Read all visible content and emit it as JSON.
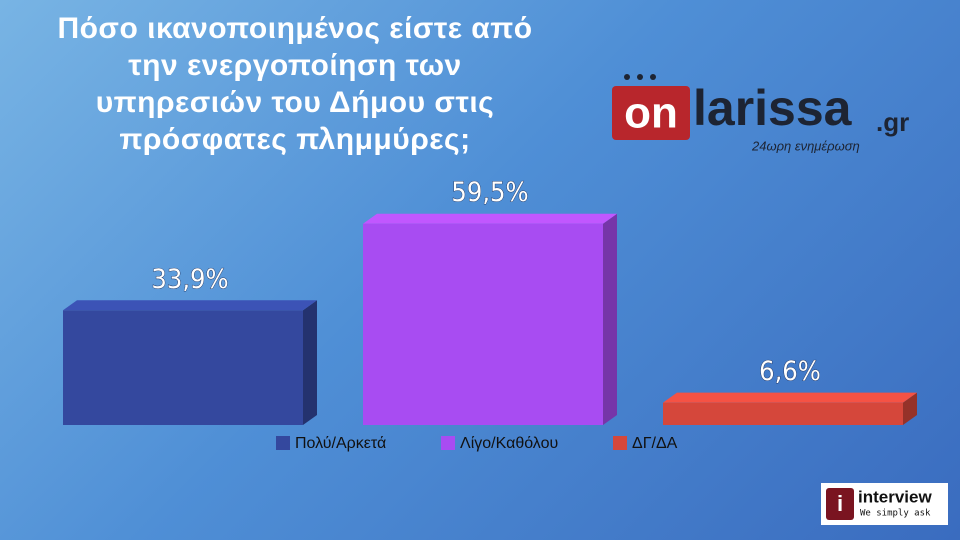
{
  "chart_data": {
    "type": "bar3d",
    "title": "Πόσο ικανοποιημένος είστε από\nτην ενεργοποίηση των\nυπηρεσιών του Δήμου στις\nπρόσφατες πλημμύρες;",
    "categories": [
      "Πολύ/Αρκετά",
      "Λίγο/Καθόλου",
      "ΔΓ/ΔΑ"
    ],
    "values": [
      33.9,
      59.5,
      6.6
    ],
    "value_labels": [
      "33,9%",
      "59,5%",
      "6,6%"
    ],
    "colors": [
      "#34489e",
      "#a84cf2",
      "#d5473b"
    ],
    "ylim": [
      0,
      60
    ],
    "legend": "bottom"
  },
  "logos": {
    "onlarissa": {
      "on": "on",
      "name": "larissa",
      "tld": ".gr",
      "tagline": "24ωρη ενημέρωση"
    },
    "interview": {
      "icon": "i",
      "name": "interview",
      "tagline": "We simply ask"
    }
  }
}
